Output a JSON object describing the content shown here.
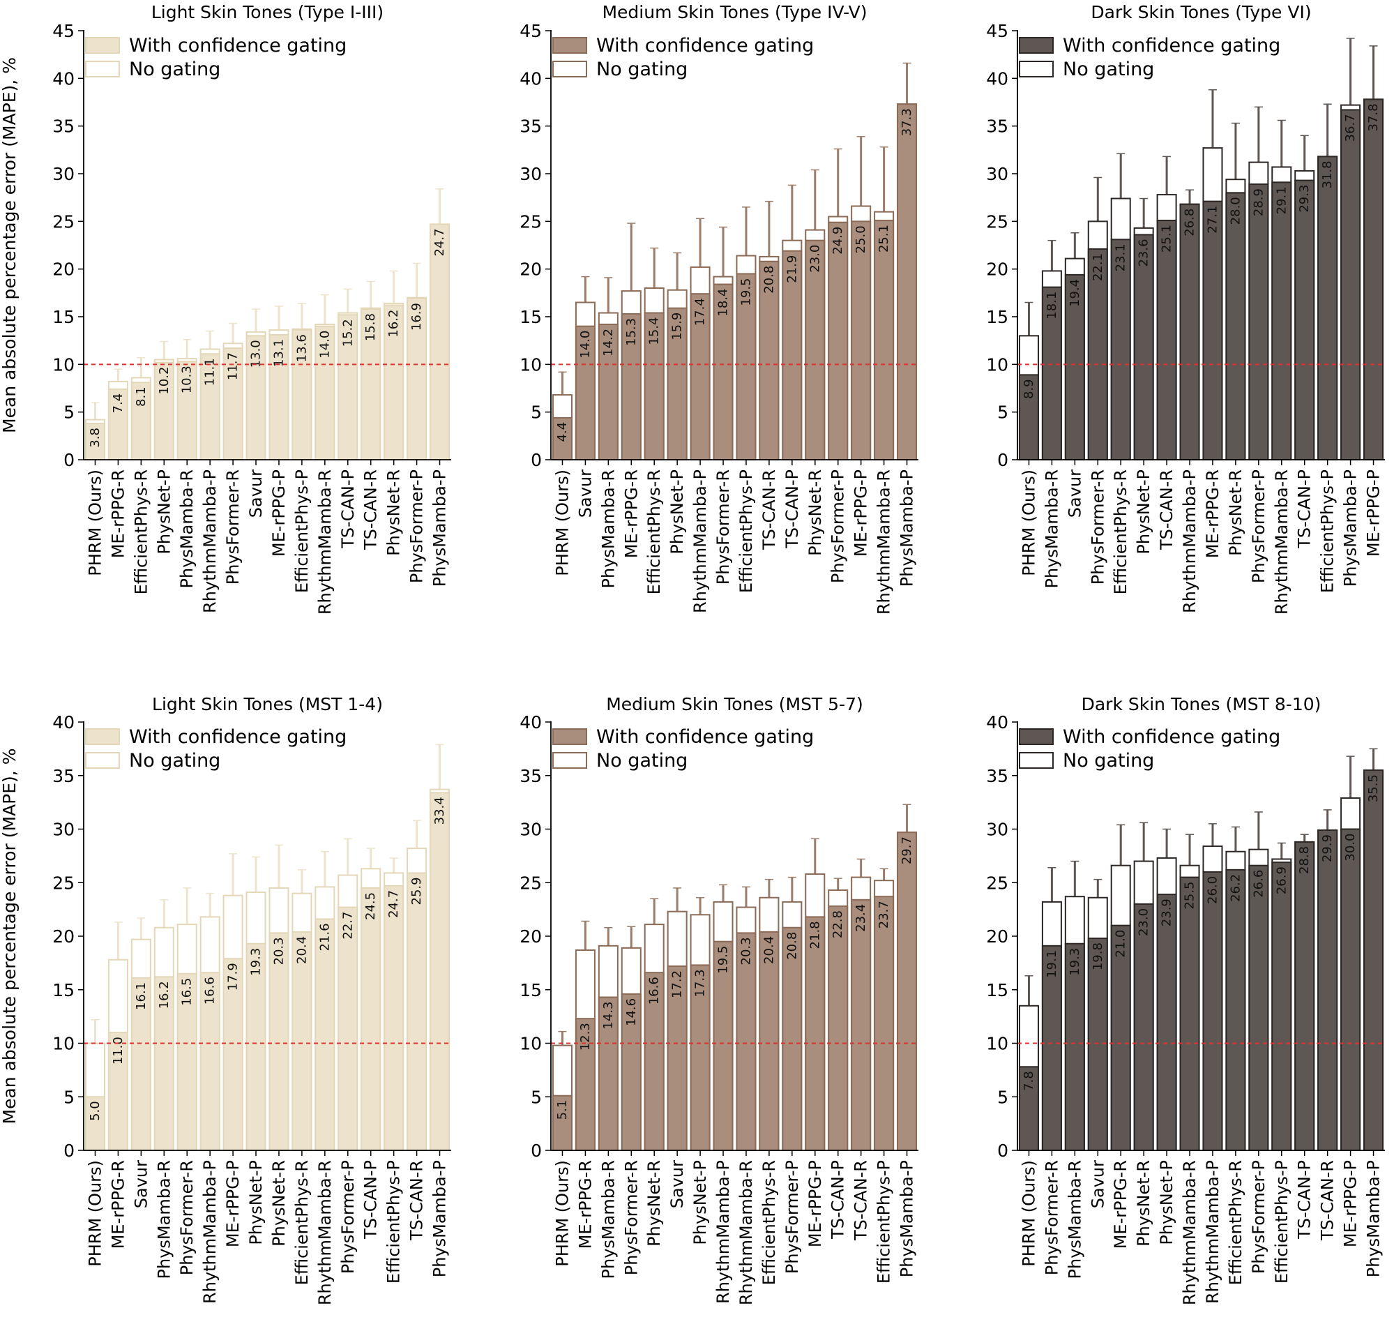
{
  "figure": {
    "ylabel": "Mean absolute percentage error (MAPE), %",
    "legend": {
      "gated": "With confidence gating",
      "nogate": "No gating"
    },
    "reference_line": 10,
    "colors": {
      "light": {
        "fill": "#ede3cc",
        "edge": "#e4d7b7",
        "err": "#eee4cd"
      },
      "medium": {
        "fill": "#a98d7d",
        "edge": "#8b6a56",
        "err": "#9a7d6b"
      },
      "dark": {
        "fill": "#5e5754",
        "edge": "#2c2725",
        "err": "#5e5754"
      },
      "reference": "#e03030"
    }
  },
  "chart_data": [
    {
      "type": "bar",
      "tone": "light",
      "title": "Light Skin Tones (Type I-III)",
      "ylim": [
        0,
        45
      ],
      "yticks": [
        0,
        5,
        10,
        15,
        20,
        25,
        30,
        35,
        40,
        45
      ],
      "categories": [
        "PHRM (Ours)",
        "ME-rPPG-R",
        "EfficientPhys-R",
        "PhysNet-P",
        "PhysMamba-R",
        "RhythmMamba-P",
        "PhysFormer-R",
        "Savur",
        "ME-rPPG-P",
        "EfficientPhys-P",
        "RhythmMamba-R",
        "TS-CAN-P",
        "TS-CAN-R",
        "PhysNet-R",
        "PhysFormer-P",
        "PhysMamba-P"
      ],
      "series": [
        {
          "name": "With confidence gating",
          "values": [
            3.8,
            7.4,
            8.1,
            10.2,
            10.3,
            11.1,
            11.7,
            13.0,
            13.1,
            13.6,
            14.0,
            15.2,
            15.8,
            16.2,
            16.9,
            24.7
          ]
        },
        {
          "name": "No gating",
          "values": [
            4.2,
            8.2,
            8.6,
            10.5,
            10.6,
            11.6,
            12.2,
            13.4,
            13.6,
            13.7,
            14.2,
            15.4,
            15.9,
            16.4,
            17.0,
            24.7
          ]
        }
      ],
      "error_top": [
        6.0,
        9.5,
        10.7,
        12.4,
        12.6,
        13.5,
        14.3,
        15.8,
        16.1,
        16.4,
        17.3,
        17.9,
        18.7,
        19.8,
        20.6,
        28.4
      ]
    },
    {
      "type": "bar",
      "tone": "medium",
      "title": "Medium Skin Tones (Type IV-V)",
      "ylim": [
        0,
        45
      ],
      "yticks": [
        0,
        5,
        10,
        15,
        20,
        25,
        30,
        35,
        40,
        45
      ],
      "categories": [
        "PHRM (Ours)",
        "Savur",
        "PhysMamba-R",
        "ME-rPPG-R",
        "EfficientPhys-R",
        "PhysNet-P",
        "RhythmMamba-P",
        "PhysFormer-R",
        "EfficientPhys-P",
        "TS-CAN-R",
        "TS-CAN-P",
        "PhysNet-R",
        "PhysFormer-P",
        "ME-rPPG-P",
        "RhythmMamba-R",
        "PhysMamba-P"
      ],
      "series": [
        {
          "name": "With confidence gating",
          "values": [
            4.4,
            14.0,
            14.2,
            15.3,
            15.4,
            15.9,
            17.4,
            18.4,
            19.5,
            20.8,
            21.9,
            23.0,
            24.9,
            25.0,
            25.1,
            37.3
          ]
        },
        {
          "name": "No gating",
          "values": [
            6.8,
            16.5,
            15.4,
            17.7,
            18.0,
            17.8,
            20.2,
            19.2,
            21.4,
            21.3,
            23.0,
            24.1,
            25.5,
            26.6,
            26.0,
            37.3
          ]
        }
      ],
      "error_top": [
        9.2,
        19.2,
        19.1,
        24.8,
        22.2,
        21.7,
        25.3,
        24.4,
        26.5,
        27.1,
        28.8,
        30.4,
        32.6,
        33.9,
        32.8,
        41.6
      ]
    },
    {
      "type": "bar",
      "tone": "dark",
      "title": "Dark Skin Tones (Type VI)",
      "ylim": [
        0,
        45
      ],
      "yticks": [
        0,
        5,
        10,
        15,
        20,
        25,
        30,
        35,
        40,
        45
      ],
      "categories": [
        "PHRM (Ours)",
        "PhysMamba-R",
        "Savur",
        "PhysFormer-R",
        "EfficientPhys-R",
        "PhysNet-P",
        "TS-CAN-R",
        "RhythmMamba-P",
        "ME-rPPG-R",
        "PhysNet-R",
        "PhysFormer-P",
        "RhythmMamba-R",
        "TS-CAN-P",
        "EfficientPhys-P",
        "PhysMamba-P",
        "ME-rPPG-P"
      ],
      "series": [
        {
          "name": "With confidence gating",
          "values": [
            8.9,
            18.1,
            19.4,
            22.1,
            23.1,
            23.6,
            25.1,
            26.8,
            27.1,
            28.0,
            28.9,
            29.1,
            29.3,
            31.8,
            36.7,
            37.8
          ]
        },
        {
          "name": "No gating",
          "values": [
            13.0,
            19.8,
            21.1,
            25.0,
            27.4,
            24.3,
            27.8,
            26.8,
            32.7,
            29.4,
            31.2,
            30.7,
            30.3,
            31.8,
            37.2,
            37.8
          ]
        }
      ],
      "error_top": [
        16.5,
        23.0,
        23.8,
        29.6,
        32.1,
        27.4,
        31.8,
        28.3,
        38.8,
        35.3,
        37.0,
        35.6,
        34.0,
        37.3,
        44.2,
        43.4
      ]
    },
    {
      "type": "bar",
      "tone": "light",
      "title": "Light Skin Tones (MST 1-4)",
      "ylim": [
        0,
        40
      ],
      "yticks": [
        0,
        5,
        10,
        15,
        20,
        25,
        30,
        35,
        40
      ],
      "categories": [
        "PHRM (Ours)",
        "ME-rPPG-R",
        "Savur",
        "PhysMamba-R",
        "PhysFormer-R",
        "RhythmMamba-P",
        "ME-rPPG-P",
        "PhysNet-P",
        "PhysNet-R",
        "EfficientPhys-R",
        "RhythmMamba-R",
        "PhysFormer-P",
        "TS-CAN-P",
        "EfficientPhys-P",
        "TS-CAN-R",
        "PhysMamba-P"
      ],
      "series": [
        {
          "name": "With confidence gating",
          "values": [
            5.0,
            11.0,
            16.1,
            16.2,
            16.5,
            16.6,
            17.9,
            19.3,
            20.3,
            20.4,
            21.6,
            22.7,
            24.5,
            24.7,
            25.9,
            33.4
          ]
        },
        {
          "name": "No gating",
          "values": [
            10.0,
            17.8,
            19.7,
            20.8,
            21.1,
            21.8,
            23.8,
            24.1,
            24.5,
            24.0,
            24.6,
            25.7,
            26.3,
            25.9,
            28.2,
            33.7
          ]
        }
      ],
      "error_top": [
        12.2,
        21.3,
        21.7,
        23.4,
        24.5,
        24.0,
        27.7,
        27.4,
        28.5,
        26.2,
        27.9,
        29.1,
        28.2,
        27.3,
        30.8,
        37.9
      ]
    },
    {
      "type": "bar",
      "tone": "medium",
      "title": "Medium Skin Tones (MST 5-7)",
      "ylim": [
        0,
        40
      ],
      "yticks": [
        0,
        5,
        10,
        15,
        20,
        25,
        30,
        35,
        40
      ],
      "categories": [
        "PHRM (Ours)",
        "ME-rPPG-R",
        "PhysMamba-R",
        "PhysFormer-R",
        "PhysNet-R",
        "Savur",
        "PhysNet-P",
        "RhythmMamba-P",
        "RhythmMamba-R",
        "EfficientPhys-R",
        "PhysFormer-P",
        "ME-rPPG-P",
        "TS-CAN-P",
        "TS-CAN-R",
        "EfficientPhys-P",
        "PhysMamba-P"
      ],
      "series": [
        {
          "name": "With confidence gating",
          "values": [
            5.1,
            12.3,
            14.3,
            14.6,
            16.6,
            17.2,
            17.3,
            19.5,
            20.3,
            20.4,
            20.8,
            21.8,
            22.8,
            23.4,
            23.7,
            29.7
          ]
        },
        {
          "name": "No gating",
          "values": [
            9.8,
            18.7,
            19.1,
            18.9,
            21.1,
            22.3,
            22.0,
            23.2,
            22.7,
            23.6,
            23.2,
            25.8,
            24.3,
            25.5,
            25.2,
            29.7
          ]
        }
      ],
      "error_top": [
        11.1,
        21.4,
        20.8,
        20.9,
        23.5,
        24.5,
        23.6,
        24.8,
        24.6,
        25.3,
        25.5,
        29.1,
        25.4,
        27.2,
        26.3,
        32.3
      ]
    },
    {
      "type": "bar",
      "tone": "dark",
      "title": "Dark Skin Tones (MST 8-10)",
      "ylim": [
        0,
        40
      ],
      "yticks": [
        0,
        5,
        10,
        15,
        20,
        25,
        30,
        35,
        40
      ],
      "categories": [
        "PHRM (Ours)",
        "PhysFormer-R",
        "PhysMamba-R",
        "Savur",
        "ME-rPPG-R",
        "PhysNet-R",
        "PhysNet-P",
        "RhythmMamba-R",
        "RhythmMamba-P",
        "EfficientPhys-R",
        "PhysFormer-P",
        "EfficientPhys-P",
        "TS-CAN-P",
        "TS-CAN-R",
        "ME-rPPG-P",
        "PhysMamba-P"
      ],
      "series": [
        {
          "name": "With confidence gating",
          "values": [
            7.8,
            19.1,
            19.3,
            19.8,
            21.0,
            23.0,
            23.9,
            25.5,
            26.0,
            26.2,
            26.6,
            26.9,
            28.8,
            29.9,
            30.0,
            35.5
          ]
        },
        {
          "name": "No gating",
          "values": [
            13.5,
            23.2,
            23.7,
            23.6,
            26.6,
            27.0,
            27.3,
            26.6,
            28.4,
            27.9,
            28.1,
            27.2,
            28.8,
            29.9,
            32.9,
            35.5
          ]
        }
      ],
      "error_top": [
        16.3,
        26.4,
        27.0,
        25.3,
        30.4,
        30.6,
        30.0,
        29.5,
        30.5,
        30.2,
        31.6,
        28.7,
        29.5,
        31.8,
        36.8,
        37.5
      ]
    }
  ]
}
